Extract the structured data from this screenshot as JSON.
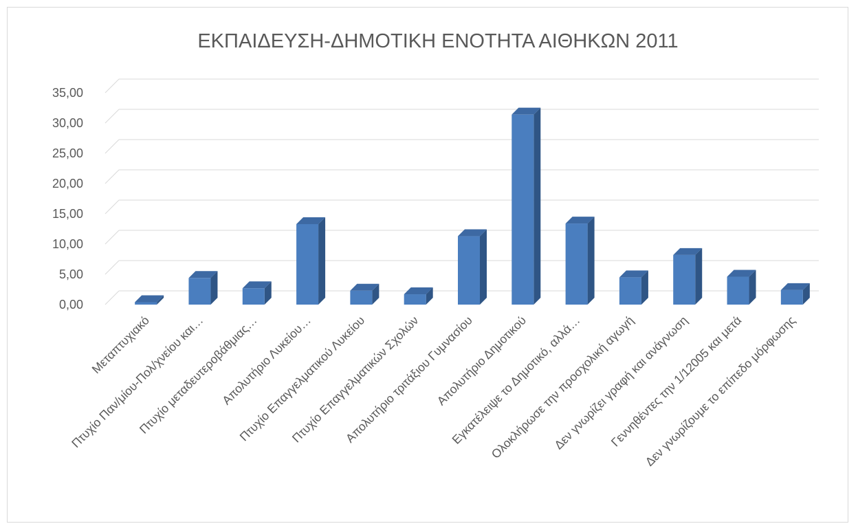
{
  "chart_data": {
    "type": "bar",
    "title": "ΕΚΠΑΙΔΕΥΣΗ-ΔΗΜΟΤΙΚΗ ΕΝΟΤΗΤΑ ΑΙΘΗΚΩΝ 2011",
    "xlabel": "",
    "ylabel": "",
    "ylim": [
      0,
      35
    ],
    "yticks": [
      "0,00",
      "5,00",
      "10,00",
      "15,00",
      "20,00",
      "25,00",
      "30,00",
      "35,00"
    ],
    "grid": true,
    "legend": "none",
    "bar_style": "3d-column",
    "colors": {
      "bar_front": "#4a7ebf",
      "bar_side": "#2f5585",
      "bar_top": "#3d69a3",
      "grid": "#d9d9d9",
      "text": "#595959"
    },
    "categories": [
      "Μεταπτυχιακό",
      "Πτυχίο Παν/μίου-Πολ/χνείου και…",
      "Πτυχίο μεταδευτεροβάθμιας…",
      "Απολυτήριο Λυκείου…",
      "Πτυχίο Επαγγελματικού Λυκείου",
      "Πτυχίο Επαγγελματικών Σχολών",
      "Απολυτήριο τριτάξιου Γυμνασίου",
      "Απολυτήριο Δημοτικού",
      "Εγκατέλειψε το  Δημοτικό, αλλά…",
      "Ολοκλήρωσε την προσχολική αγωγή",
      "Δεν γνωρίζει γραφή και ανάγνωση",
      "Γεννηθέντες την 1/12005 και μετά",
      "Δεν γνωρίζουμε το επίπεδο μόρφωσης"
    ],
    "values": [
      0.4,
      4.4,
      2.7,
      13.3,
      2.3,
      1.7,
      11.3,
      31.4,
      13.4,
      4.5,
      8.2,
      4.6,
      2.4
    ]
  }
}
